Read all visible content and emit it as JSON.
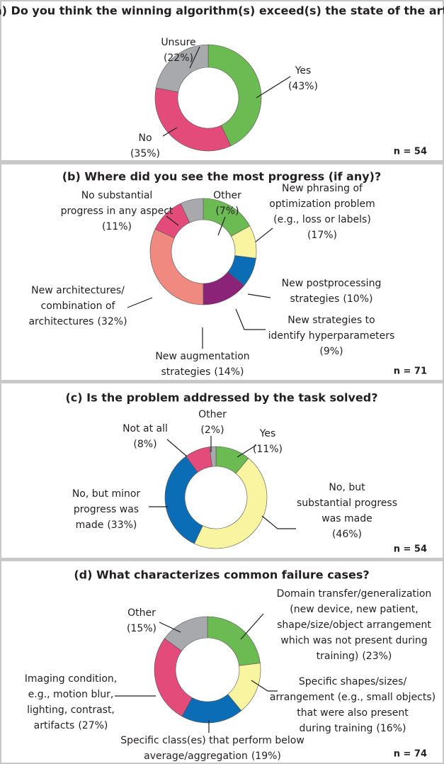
{
  "chart_data": [
    {
      "type": "donut",
      "title": "(a) Do you think the winning algorithm(s) exceed(s) the state of the art?",
      "categories": [
        [
          "Yes"
        ],
        [
          "No"
        ],
        [
          "Unsure"
        ]
      ],
      "values": [
        43,
        35,
        22
      ],
      "value_labels": [
        "(43%)",
        "(35%)",
        "(22%)"
      ],
      "colors": [
        "#6cbb52",
        "#e34b7b",
        "#a7a9ac"
      ],
      "annotation": "n = 54"
    },
    {
      "type": "donut",
      "title": "(b) Where did you see the most progress (if any)?",
      "categories": [
        [
          "New phrasing of",
          "optimization problem",
          "(e.g., loss or labels)"
        ],
        [
          "New postprocessing",
          "strategies"
        ],
        [
          "New strategies to",
          "identify hyperparameters"
        ],
        [
          "New augmentation",
          "strategies"
        ],
        [
          "New architectures/",
          "combination of",
          "architectures"
        ],
        [
          "No substantial",
          "progress in any aspect"
        ],
        [
          "Other"
        ]
      ],
      "values": [
        17,
        10,
        9,
        14,
        32,
        11,
        7
      ],
      "value_labels": [
        "(17%)",
        "(10%)",
        "(9%)",
        "(14%)",
        "(32%)",
        "(11%)",
        "(7%)"
      ],
      "colors": [
        "#6cbb52",
        "#f9f4a0",
        "#0b6db5",
        "#8b2379",
        "#f08a80",
        "#e34b7b",
        "#a7a9ac"
      ],
      "annotation": "n = 71"
    },
    {
      "type": "donut",
      "title": "(c) Is the problem addressed by the task solved?",
      "categories": [
        [
          "Yes"
        ],
        [
          "No, but",
          "substantial progress",
          "was made"
        ],
        [
          "No, but minor",
          "progress was",
          "made"
        ],
        [
          "Not at all"
        ],
        [
          "Other"
        ]
      ],
      "values": [
        11,
        46,
        33,
        8,
        2
      ],
      "value_labels": [
        "(11%)",
        "(46%)",
        "(33%)",
        "(8%)",
        "(2%)"
      ],
      "colors": [
        "#6cbb52",
        "#f9f4a0",
        "#0b6db5",
        "#e34b7b",
        "#a7a9ac"
      ],
      "annotation": "n = 54"
    },
    {
      "type": "donut",
      "title": "(d) What characterizes common failure cases?",
      "categories": [
        [
          "Domain transfer/generalization",
          "(new device, new patient,",
          "shape/size/object arrangement",
          "which was not present during",
          "training)"
        ],
        [
          "Specific shapes/sizes/",
          "arrangement (e.g., small objects)",
          "that were also present",
          "during training"
        ],
        [
          "Specific class(es) that perform below",
          "average/aggregation"
        ],
        [
          "Imaging condition,",
          "e.g., motion blur,",
          "lighting, contrast,",
          "artifacts"
        ],
        [
          "Other"
        ]
      ],
      "values": [
        23,
        16,
        19,
        27,
        15
      ],
      "value_labels": [
        "(23%)",
        "(16%)",
        "(19%)",
        "(27%)",
        "(15%)"
      ],
      "colors": [
        "#6cbb52",
        "#f9f4a0",
        "#0b6db5",
        "#e34b7b",
        "#a7a9ac"
      ],
      "annotation": "n = 74"
    }
  ]
}
